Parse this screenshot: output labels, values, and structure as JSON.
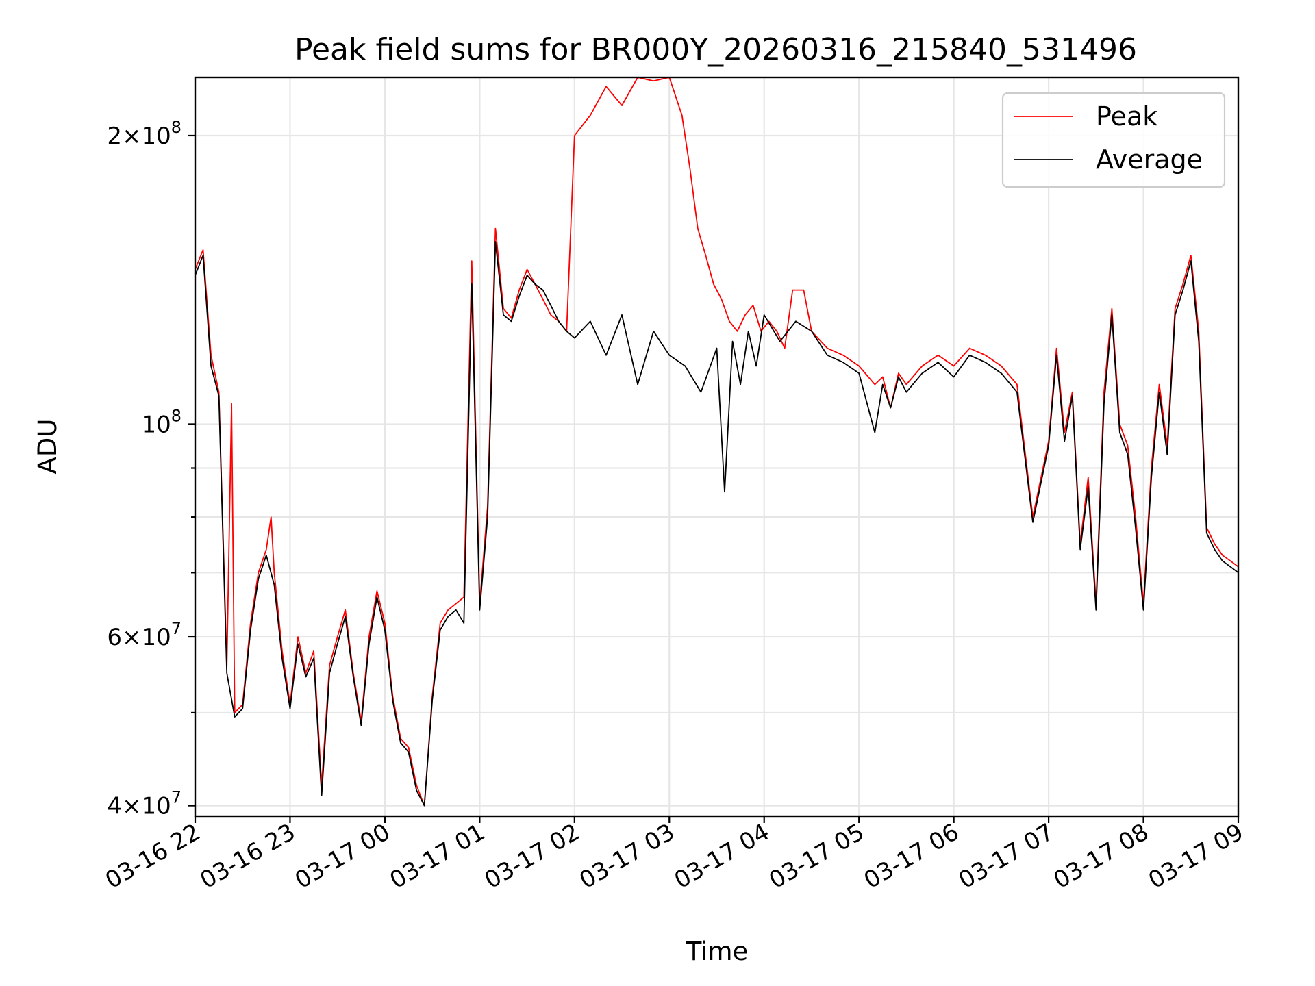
{
  "chart_data": {
    "type": "line",
    "title": "Peak field sums for BR000Y_20260316_215840_531496",
    "xlabel": "Time",
    "ylabel": "ADU",
    "yscale": "log",
    "xlim": [
      "2026-03-16T22:00",
      "2026-03-17T09:00"
    ],
    "ylim": [
      39000000,
      230000000
    ],
    "grid": true,
    "legend_position": "upper right",
    "colors": {
      "Peak": "#ff0000",
      "Average": "#000000"
    },
    "x_ticks": [
      {
        "t": "2026-03-16T22:00",
        "label": "03-16 22"
      },
      {
        "t": "2026-03-16T23:00",
        "label": "03-16 23"
      },
      {
        "t": "2026-03-17T00:00",
        "label": "03-17 00"
      },
      {
        "t": "2026-03-17T01:00",
        "label": "03-17 01"
      },
      {
        "t": "2026-03-17T02:00",
        "label": "03-17 02"
      },
      {
        "t": "2026-03-17T03:00",
        "label": "03-17 03"
      },
      {
        "t": "2026-03-17T04:00",
        "label": "03-17 04"
      },
      {
        "t": "2026-03-17T05:00",
        "label": "03-17 05"
      },
      {
        "t": "2026-03-17T06:00",
        "label": "03-17 06"
      },
      {
        "t": "2026-03-17T07:00",
        "label": "03-17 07"
      },
      {
        "t": "2026-03-17T08:00",
        "label": "03-17 08"
      },
      {
        "t": "2026-03-17T09:00",
        "label": "03-17 09"
      }
    ],
    "y_ticks_major": [
      {
        "value": 40000000,
        "mantissa": "4",
        "exponent": "7"
      },
      {
        "value": 60000000,
        "mantissa": "6",
        "exponent": "7"
      },
      {
        "value": 100000000,
        "mantissa": "",
        "exponent": "8"
      },
      {
        "value": 200000000,
        "mantissa": "2",
        "exponent": "8"
      }
    ],
    "y_grid_minor": [
      50000000,
      70000000,
      80000000,
      90000000
    ],
    "series": [
      {
        "name": "Peak",
        "x": [
          "2026-03-16T22:00",
          "2026-03-16T22:05",
          "2026-03-16T22:10",
          "2026-03-16T22:15",
          "2026-03-16T22:20",
          "2026-03-16T22:23",
          "2026-03-16T22:25",
          "2026-03-16T22:30",
          "2026-03-16T22:35",
          "2026-03-16T22:40",
          "2026-03-16T22:45",
          "2026-03-16T22:48",
          "2026-03-16T22:50",
          "2026-03-16T22:55",
          "2026-03-16T23:00",
          "2026-03-16T23:05",
          "2026-03-16T23:10",
          "2026-03-16T23:15",
          "2026-03-16T23:20",
          "2026-03-16T23:25",
          "2026-03-16T23:30",
          "2026-03-16T23:35",
          "2026-03-16T23:40",
          "2026-03-16T23:45",
          "2026-03-16T23:50",
          "2026-03-16T23:55",
          "2026-03-17T00:00",
          "2026-03-17T00:05",
          "2026-03-17T00:10",
          "2026-03-17T00:15",
          "2026-03-17T00:20",
          "2026-03-17T00:25",
          "2026-03-17T00:30",
          "2026-03-17T00:35",
          "2026-03-17T00:40",
          "2026-03-17T00:45",
          "2026-03-17T00:50",
          "2026-03-17T00:55",
          "2026-03-17T01:00",
          "2026-03-17T01:05",
          "2026-03-17T01:10",
          "2026-03-17T01:15",
          "2026-03-17T01:20",
          "2026-03-17T01:25",
          "2026-03-17T01:30",
          "2026-03-17T01:33",
          "2026-03-17T01:35",
          "2026-03-17T01:40",
          "2026-03-17T01:45",
          "2026-03-17T01:50",
          "2026-03-17T01:55",
          "2026-03-17T02:00",
          "2026-03-17T02:10",
          "2026-03-17T02:20",
          "2026-03-17T02:30",
          "2026-03-17T02:40",
          "2026-03-17T02:50",
          "2026-03-17T03:00",
          "2026-03-17T03:08",
          "2026-03-17T03:13",
          "2026-03-17T03:18",
          "2026-03-17T03:23",
          "2026-03-17T03:28",
          "2026-03-17T03:33",
          "2026-03-17T03:38",
          "2026-03-17T03:43",
          "2026-03-17T03:48",
          "2026-03-17T03:53",
          "2026-03-17T03:58",
          "2026-03-17T04:03",
          "2026-03-17T04:08",
          "2026-03-17T04:13",
          "2026-03-17T04:18",
          "2026-03-17T04:25",
          "2026-03-17T04:30",
          "2026-03-17T04:40",
          "2026-03-17T04:50",
          "2026-03-17T05:00",
          "2026-03-17T05:10",
          "2026-03-17T05:15",
          "2026-03-17T05:20",
          "2026-03-17T05:25",
          "2026-03-17T05:30",
          "2026-03-17T05:40",
          "2026-03-17T05:50",
          "2026-03-17T06:00",
          "2026-03-17T06:10",
          "2026-03-17T06:20",
          "2026-03-17T06:30",
          "2026-03-17T06:40",
          "2026-03-17T06:50",
          "2026-03-17T07:00",
          "2026-03-17T07:05",
          "2026-03-17T07:10",
          "2026-03-17T07:15",
          "2026-03-17T07:20",
          "2026-03-17T07:25",
          "2026-03-17T07:30",
          "2026-03-17T07:35",
          "2026-03-17T07:40",
          "2026-03-17T07:45",
          "2026-03-17T07:50",
          "2026-03-17T07:55",
          "2026-03-17T08:00",
          "2026-03-17T08:05",
          "2026-03-17T08:10",
          "2026-03-17T08:15",
          "2026-03-17T08:20",
          "2026-03-17T08:25",
          "2026-03-17T08:30",
          "2026-03-17T08:35",
          "2026-03-17T08:40",
          "2026-03-17T08:45",
          "2026-03-17T08:50",
          "2026-03-17T08:55",
          "2026-03-17T09:00"
        ],
        "values": [
          145000000,
          152000000,
          118000000,
          108000000,
          56000000,
          105000000,
          50000000,
          51000000,
          62000000,
          70000000,
          74000000,
          80000000,
          70000000,
          58000000,
          51000000,
          60000000,
          55000000,
          58000000,
          42000000,
          56000000,
          60000000,
          64000000,
          55000000,
          49000000,
          60000000,
          67000000,
          62000000,
          52000000,
          47000000,
          46000000,
          42000000,
          40000000,
          52000000,
          62000000,
          64000000,
          65000000,
          66000000,
          148000000,
          65000000,
          82000000,
          160000000,
          132000000,
          129000000,
          138000000,
          145000000,
          142000000,
          140000000,
          135000000,
          130000000,
          128000000,
          125000000,
          200000000,
          210000000,
          225000000,
          215000000,
          230000000,
          228000000,
          230000000,
          210000000,
          185000000,
          160000000,
          150000000,
          140000000,
          135000000,
          128000000,
          125000000,
          130000000,
          133000000,
          125000000,
          128000000,
          125000000,
          120000000,
          138000000,
          138000000,
          125000000,
          120000000,
          118000000,
          115000000,
          110000000,
          112000000,
          104000000,
          113000000,
          110000000,
          115000000,
          118000000,
          115000000,
          120000000,
          118000000,
          115000000,
          110000000,
          80000000,
          96000000,
          120000000,
          98000000,
          108000000,
          75000000,
          88000000,
          65000000,
          108000000,
          132000000,
          100000000,
          95000000,
          80000000,
          65000000,
          90000000,
          110000000,
          95000000,
          132000000,
          140000000,
          150000000,
          125000000,
          78000000,
          75000000,
          73000000,
          72000000,
          71000000
        ]
      },
      {
        "name": "Average",
        "x": [
          "2026-03-16T22:00",
          "2026-03-16T22:05",
          "2026-03-16T22:10",
          "2026-03-16T22:15",
          "2026-03-16T22:20",
          "2026-03-16T22:25",
          "2026-03-16T22:30",
          "2026-03-16T22:35",
          "2026-03-16T22:40",
          "2026-03-16T22:45",
          "2026-03-16T22:50",
          "2026-03-16T22:55",
          "2026-03-16T23:00",
          "2026-03-16T23:05",
          "2026-03-16T23:10",
          "2026-03-16T23:15",
          "2026-03-16T23:20",
          "2026-03-16T23:25",
          "2026-03-16T23:30",
          "2026-03-16T23:35",
          "2026-03-16T23:40",
          "2026-03-16T23:45",
          "2026-03-16T23:50",
          "2026-03-16T23:55",
          "2026-03-17T00:00",
          "2026-03-17T00:05",
          "2026-03-17T00:10",
          "2026-03-17T00:15",
          "2026-03-17T00:20",
          "2026-03-17T00:25",
          "2026-03-17T00:30",
          "2026-03-17T00:35",
          "2026-03-17T00:40",
          "2026-03-17T00:45",
          "2026-03-17T00:50",
          "2026-03-17T00:55",
          "2026-03-17T01:00",
          "2026-03-17T01:05",
          "2026-03-17T01:10",
          "2026-03-17T01:15",
          "2026-03-17T01:20",
          "2026-03-17T01:25",
          "2026-03-17T01:30",
          "2026-03-17T01:35",
          "2026-03-17T01:40",
          "2026-03-17T01:45",
          "2026-03-17T01:50",
          "2026-03-17T01:55",
          "2026-03-17T02:00",
          "2026-03-17T02:10",
          "2026-03-17T02:20",
          "2026-03-17T02:30",
          "2026-03-17T02:40",
          "2026-03-17T02:50",
          "2026-03-17T03:00",
          "2026-03-17T03:10",
          "2026-03-17T03:20",
          "2026-03-17T03:30",
          "2026-03-17T03:35",
          "2026-03-17T03:40",
          "2026-03-17T03:45",
          "2026-03-17T03:50",
          "2026-03-17T03:55",
          "2026-03-17T04:00",
          "2026-03-17T04:10",
          "2026-03-17T04:20",
          "2026-03-17T04:30",
          "2026-03-17T04:40",
          "2026-03-17T04:50",
          "2026-03-17T05:00",
          "2026-03-17T05:10",
          "2026-03-17T05:15",
          "2026-03-17T05:20",
          "2026-03-17T05:25",
          "2026-03-17T05:30",
          "2026-03-17T05:40",
          "2026-03-17T05:50",
          "2026-03-17T06:00",
          "2026-03-17T06:10",
          "2026-03-17T06:20",
          "2026-03-17T06:30",
          "2026-03-17T06:40",
          "2026-03-17T06:50",
          "2026-03-17T07:00",
          "2026-03-17T07:05",
          "2026-03-17T07:10",
          "2026-03-17T07:15",
          "2026-03-17T07:20",
          "2026-03-17T07:25",
          "2026-03-17T07:30",
          "2026-03-17T07:35",
          "2026-03-17T07:40",
          "2026-03-17T07:45",
          "2026-03-17T07:50",
          "2026-03-17T07:55",
          "2026-03-17T08:00",
          "2026-03-17T08:05",
          "2026-03-17T08:10",
          "2026-03-17T08:15",
          "2026-03-17T08:20",
          "2026-03-17T08:25",
          "2026-03-17T08:30",
          "2026-03-17T08:35",
          "2026-03-17T08:40",
          "2026-03-17T08:45",
          "2026-03-17T08:50",
          "2026-03-17T08:55",
          "2026-03-17T09:00"
        ],
        "values": [
          143000000,
          150000000,
          115000000,
          107000000,
          55000000,
          49500000,
          50500000,
          61000000,
          69000000,
          73000000,
          68000000,
          57000000,
          50500000,
          59000000,
          54500000,
          57000000,
          41000000,
          55000000,
          59000000,
          63000000,
          54500000,
          48500000,
          59000000,
          66000000,
          61000000,
          51500000,
          46500000,
          45500000,
          41500000,
          40000000,
          51500000,
          61000000,
          63000000,
          64000000,
          62000000,
          140000000,
          64000000,
          80000000,
          155000000,
          130000000,
          128000000,
          136000000,
          143000000,
          140000000,
          138000000,
          133000000,
          128000000,
          125000000,
          123000000,
          128000000,
          118000000,
          130000000,
          110000000,
          125000000,
          118000000,
          115000000,
          108000000,
          120000000,
          85000000,
          122000000,
          110000000,
          125000000,
          115000000,
          130000000,
          122000000,
          128000000,
          125000000,
          118000000,
          116000000,
          113000000,
          98000000,
          110000000,
          104000000,
          112000000,
          108000000,
          113000000,
          116000000,
          112000000,
          118000000,
          116000000,
          113000000,
          108000000,
          79000000,
          95000000,
          118000000,
          96000000,
          107000000,
          74000000,
          86000000,
          64000000,
          105000000,
          130000000,
          98000000,
          93000000,
          78000000,
          64000000,
          88000000,
          108000000,
          93000000,
          130000000,
          138000000,
          148000000,
          122000000,
          77000000,
          74000000,
          72000000,
          71000000,
          70000000
        ]
      }
    ]
  }
}
